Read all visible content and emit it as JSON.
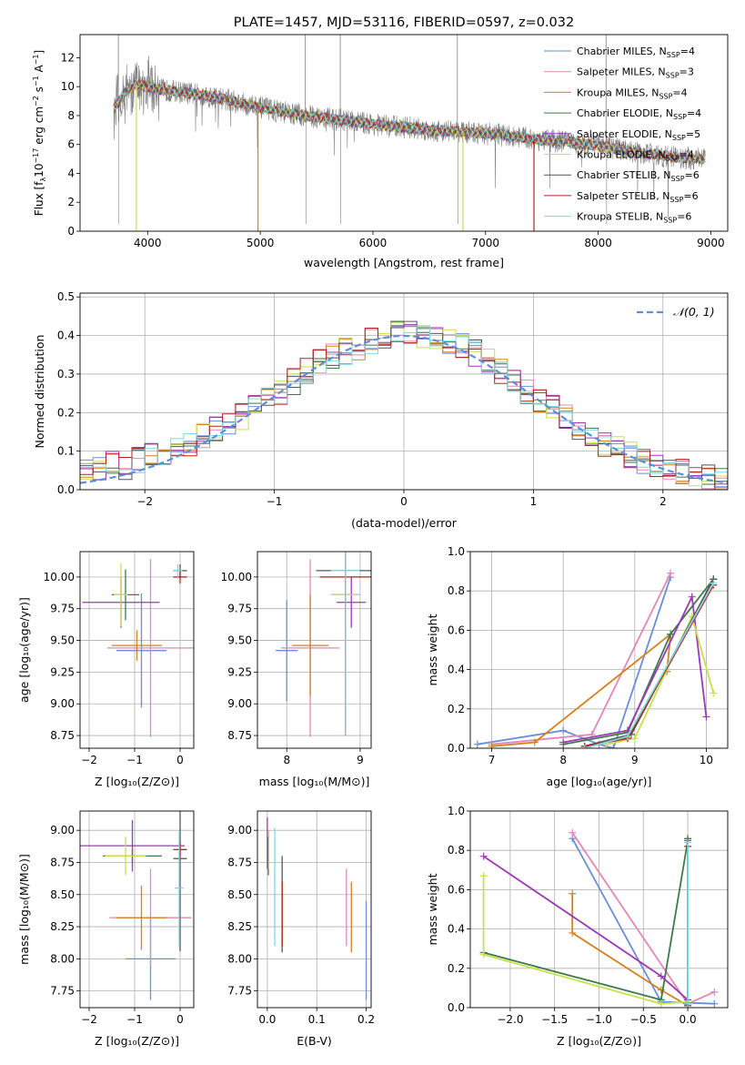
{
  "colors": {
    "chabrier_miles": "#6a8fd6",
    "salpeter_miles": "#e287b8",
    "kroupa_miles": "#d4821e",
    "chabrier_elodie": "#3d7a4a",
    "salpeter_elodie": "#9b39b6",
    "kroupa_elodie": "#c8e04a",
    "chabrier_stelib": "#555555",
    "salpeter_stelib": "#b22222",
    "kroupa_stelib": "#7fd8e0",
    "observed": "#7f7f7f",
    "normal_curve": "#5b8fd6"
  },
  "chart_data": [
    {
      "type": "line",
      "title": "PLATE=1457, MJD=53116, FIBERID=0597, z=0.032",
      "xlabel": "wavelength [Angstrom, rest frame]",
      "ylabel": "Flux [fλ10⁻¹⁷ erg cm⁻² s⁻¹ A⁻¹]",
      "xlim": [
        3400,
        9150
      ],
      "ylim": [
        0,
        13.6
      ],
      "xticks": [
        4000,
        5000,
        6000,
        7000,
        8000,
        9000
      ],
      "yticks": [
        0,
        2,
        4,
        6,
        8,
        10,
        12
      ],
      "legend_position": "top-right",
      "grid": false,
      "legend": [
        {
          "label": "Chabrier MILES, N",
          "sub": "SSP",
          "tail": "=4",
          "color_key": "chabrier_miles"
        },
        {
          "label": "Salpeter MILES, N",
          "sub": "SSP",
          "tail": "=3",
          "color_key": "salpeter_miles"
        },
        {
          "label": "Kroupa MILES, N",
          "sub": "SSP",
          "tail": "=4",
          "color_key": "kroupa_miles"
        },
        {
          "label": "Chabrier ELODIE, N",
          "sub": "SSP",
          "tail": "=4",
          "color_key": "chabrier_elodie"
        },
        {
          "label": "Salpeter ELODIE, N",
          "sub": "SSP",
          "tail": "=5",
          "color_key": "salpeter_elodie"
        },
        {
          "label": "Kroupa ELODIE, N",
          "sub": "SSP",
          "tail": "=4",
          "color_key": "kroupa_elodie"
        },
        {
          "label": "Chabrier STELIB, N",
          "sub": "SSP",
          "tail": "=6",
          "color_key": "chabrier_stelib"
        },
        {
          "label": "Salpeter STELIB, N",
          "sub": "SSP",
          "tail": "=6",
          "color_key": "salpeter_stelib"
        },
        {
          "label": "Kroupa STELIB, N",
          "sub": "SSP",
          "tail": "=6",
          "color_key": "kroupa_stelib"
        }
      ],
      "model_flux": [
        [
          3700,
          8.5
        ],
        [
          3800,
          9.6
        ],
        [
          3900,
          10.2
        ],
        [
          4000,
          10.0
        ],
        [
          4100,
          9.8
        ],
        [
          4300,
          9.6
        ],
        [
          4500,
          9.4
        ],
        [
          4700,
          9.1
        ],
        [
          4900,
          8.7
        ],
        [
          5100,
          8.4
        ],
        [
          5300,
          8.1
        ],
        [
          5500,
          7.9
        ],
        [
          5700,
          7.7
        ],
        [
          5900,
          7.5
        ],
        [
          6100,
          7.3
        ],
        [
          6300,
          7.2
        ],
        [
          6500,
          7.0
        ],
        [
          6700,
          6.9
        ],
        [
          6900,
          6.8
        ],
        [
          7100,
          6.7
        ],
        [
          7300,
          6.5
        ],
        [
          7500,
          6.3
        ],
        [
          7700,
          6.2
        ],
        [
          7900,
          6.0
        ],
        [
          8100,
          5.8
        ],
        [
          8300,
          5.5
        ],
        [
          8500,
          5.3
        ],
        [
          8700,
          5.1
        ],
        [
          8900,
          5.0
        ]
      ],
      "model_dropouts": [
        3900,
        4980,
        6800,
        7430
      ],
      "observed_spikes": [
        3740,
        5400,
        5710,
        6750,
        8070
      ]
    },
    {
      "type": "line",
      "xlabel": "(data-model)/error",
      "ylabel": "Normed distribution",
      "xlim": [
        -2.5,
        2.5
      ],
      "ylim": [
        0,
        0.51
      ],
      "xticks": [
        -2,
        -1,
        0,
        1,
        2
      ],
      "yticks": [
        0.0,
        0.1,
        0.2,
        0.3,
        0.4,
        0.5
      ],
      "grid": true,
      "legend_position": "top-right",
      "legend": [
        {
          "label": "𝒩(0, 1)",
          "color_key": "normal_curve",
          "dashed": true
        }
      ],
      "bin_width": 0.1,
      "bin_start": -2.5,
      "histogram_counts": [
        0.05,
        0.055,
        0.065,
        0.06,
        0.075,
        0.09,
        0.1,
        0.115,
        0.12,
        0.14,
        0.155,
        0.17,
        0.19,
        0.215,
        0.23,
        0.255,
        0.28,
        0.31,
        0.335,
        0.345,
        0.36,
        0.37,
        0.385,
        0.395,
        0.405,
        0.41,
        0.4,
        0.395,
        0.385,
        0.37,
        0.355,
        0.33,
        0.305,
        0.28,
        0.255,
        0.23,
        0.21,
        0.185,
        0.16,
        0.14,
        0.12,
        0.105,
        0.09,
        0.075,
        0.065,
        0.055,
        0.045,
        0.035,
        0.03,
        0.025
      ]
    },
    {
      "type": "scatter",
      "xlabel": "Z [log₁₀(Z/Z⊙)]",
      "ylabel": "age  [log₁₀(age/yr)]",
      "xlim": [
        -2.2,
        0.3
      ],
      "ylim": [
        8.65,
        10.2
      ],
      "xticks": [
        -2,
        -1,
        0
      ],
      "yticks": [
        8.75,
        9.0,
        9.25,
        9.5,
        9.75,
        10.0
      ],
      "grid": true,
      "crosses": [
        {
          "color_key": "chabrier_miles",
          "x": -0.85,
          "y": 9.42,
          "xerr": 0.55,
          "yerr": 0.45
        },
        {
          "color_key": "salpeter_miles",
          "x": -0.65,
          "y": 9.44,
          "xerr": 0.95,
          "yerr": 0.7
        },
        {
          "color_key": "kroupa_miles",
          "x": -0.95,
          "y": 9.46,
          "xerr": 0.55,
          "yerr": 0.12
        },
        {
          "color_key": "chabrier_elodie",
          "x": -1.2,
          "y": 9.86,
          "xerr": 0.3,
          "yerr": 0.2
        },
        {
          "color_key": "salpeter_elodie",
          "x": -1.3,
          "y": 9.8,
          "xerr": 0.85,
          "yerr": 0.2
        },
        {
          "color_key": "kroupa_elodie",
          "x": -1.3,
          "y": 9.86,
          "xerr": 0.15,
          "yerr": 0.25
        },
        {
          "color_key": "chabrier_stelib",
          "x": 0.0,
          "y": 10.05,
          "xerr": 0.15,
          "yerr": 0.05
        },
        {
          "color_key": "salpeter_stelib",
          "x": 0.0,
          "y": 10.0,
          "xerr": 0.15,
          "yerr": 0.05
        },
        {
          "color_key": "kroupa_stelib",
          "x": -0.05,
          "y": 10.05,
          "xerr": 0.1,
          "yerr": 0.05
        }
      ]
    },
    {
      "type": "scatter",
      "xlabel": "mass [log₁₀(M/M⊙)]",
      "xlim": [
        7.6,
        9.15
      ],
      "ylim": [
        8.65,
        10.2
      ],
      "xticks": [
        8,
        9
      ],
      "yticks": [
        8.75,
        9.0,
        9.25,
        9.5,
        9.75,
        10.0
      ],
      "grid": true,
      "crosses": [
        {
          "color_key": "chabrier_miles",
          "x": 8.0,
          "y": 9.42,
          "xerr": 0.15,
          "yerr": 0.4
        },
        {
          "color_key": "salpeter_miles",
          "x": 8.32,
          "y": 9.44,
          "xerr": 0.4,
          "yerr": 0.7
        },
        {
          "color_key": "kroupa_miles",
          "x": 8.32,
          "y": 9.46,
          "xerr": 0.25,
          "yerr": 0.4
        },
        {
          "color_key": "chabrier_elodie",
          "x": 8.8,
          "y": 9.86,
          "xerr": 0.2,
          "yerr": 0.2
        },
        {
          "color_key": "salpeter_elodie",
          "x": 8.88,
          "y": 9.8,
          "xerr": 0.2,
          "yerr": 0.2
        },
        {
          "color_key": "kroupa_elodie",
          "x": 8.8,
          "y": 9.86,
          "xerr": 0.2,
          "yerr": 0.2
        },
        {
          "color_key": "chabrier_stelib",
          "x": 8.8,
          "y": 10.05,
          "xerr": 0.4,
          "yerr": 1.3
        },
        {
          "color_key": "salpeter_stelib",
          "x": 8.8,
          "y": 10.0,
          "xerr": 0.35,
          "yerr": 1.25
        },
        {
          "color_key": "kroupa_stelib",
          "x": 8.8,
          "y": 10.05,
          "xerr": 0.2,
          "yerr": 1.3
        }
      ]
    },
    {
      "type": "line",
      "xlabel": "age  [log₁₀(age/yr)]",
      "ylabel": "mass weight",
      "xlim": [
        6.7,
        10.3
      ],
      "ylim": [
        0,
        1.0
      ],
      "xticks": [
        7,
        8,
        9,
        10
      ],
      "yticks": [
        0.0,
        0.2,
        0.4,
        0.6,
        0.8,
        1.0
      ],
      "grid": true,
      "series": [
        {
          "color_key": "chabrier_miles",
          "points": [
            [
              6.8,
              0.02
            ],
            [
              8.0,
              0.09
            ],
            [
              8.5,
              0.02
            ],
            [
              8.7,
              0.0
            ],
            [
              9.5,
              0.87
            ]
          ]
        },
        {
          "color_key": "salpeter_miles",
          "points": [
            [
              7.0,
              0.02
            ],
            [
              8.4,
              0.07
            ],
            [
              9.5,
              0.89
            ]
          ]
        },
        {
          "color_key": "kroupa_miles",
          "points": [
            [
              7.0,
              0.01
            ],
            [
              7.6,
              0.03
            ],
            [
              9.5,
              0.58
            ],
            [
              9.45,
              0.39
            ]
          ]
        },
        {
          "color_key": "chabrier_elodie",
          "points": [
            [
              8.0,
              0.02
            ],
            [
              8.9,
              0.08
            ],
            [
              9.5,
              0.58
            ],
            [
              10.1,
              0.86
            ]
          ]
        },
        {
          "color_key": "salpeter_elodie",
          "points": [
            [
              8.0,
              0.03
            ],
            [
              8.9,
              0.09
            ],
            [
              9.8,
              0.77
            ],
            [
              10.0,
              0.16
            ]
          ]
        },
        {
          "color_key": "kroupa_elodie",
          "points": [
            [
              8.6,
              0.02
            ],
            [
              9.0,
              0.05
            ],
            [
              9.8,
              0.67
            ],
            [
              10.1,
              0.28
            ]
          ]
        },
        {
          "color_key": "chabrier_stelib",
          "points": [
            [
              8.3,
              0.01
            ],
            [
              8.95,
              0.07
            ],
            [
              10.1,
              0.86
            ]
          ]
        },
        {
          "color_key": "salpeter_stelib",
          "points": [
            [
              8.3,
              0.01
            ],
            [
              8.9,
              0.05
            ],
            [
              10.1,
              0.83
            ]
          ]
        },
        {
          "color_key": "kroupa_stelib",
          "points": [
            [
              8.3,
              0.0
            ],
            [
              8.9,
              0.06
            ],
            [
              10.1,
              0.84
            ]
          ]
        }
      ]
    },
    {
      "type": "scatter",
      "xlabel": "Z [log₁₀(Z/Z⊙)]",
      "ylabel": "mass [log₁₀(M/M⊙)]",
      "xlim": [
        -2.2,
        0.3
      ],
      "ylim": [
        7.62,
        9.15
      ],
      "xticks": [
        -2,
        -1,
        0
      ],
      "yticks": [
        7.75,
        8.0,
        8.25,
        8.5,
        8.75,
        9.0
      ],
      "grid": true,
      "crosses": [
        {
          "color_key": "chabrier_miles",
          "x": -0.65,
          "y": 8.0,
          "xerr": 0.55,
          "yerr": 0.32
        },
        {
          "color_key": "salpeter_miles",
          "x": -0.65,
          "y": 8.32,
          "xerr": 0.9,
          "yerr": 0.38
        },
        {
          "color_key": "kroupa_miles",
          "x": -0.85,
          "y": 8.32,
          "xerr": 0.55,
          "yerr": 0.25
        },
        {
          "color_key": "chabrier_elodie",
          "x": -1.05,
          "y": 8.8,
          "xerr": 0.65,
          "yerr": 0.05
        },
        {
          "color_key": "salpeter_elodie",
          "x": -1.05,
          "y": 8.88,
          "xerr": 1.15,
          "yerr": 0.2
        },
        {
          "color_key": "kroupa_elodie",
          "x": -1.2,
          "y": 8.8,
          "xerr": 0.45,
          "yerr": 0.15
        },
        {
          "color_key": "chabrier_stelib",
          "x": 0.0,
          "y": 8.78,
          "xerr": 0.15,
          "yerr": 0.72
        },
        {
          "color_key": "salpeter_stelib",
          "x": 0.0,
          "y": 8.85,
          "xerr": 0.15,
          "yerr": 0.05
        },
        {
          "color_key": "kroupa_stelib",
          "x": -0.02,
          "y": 8.55,
          "xerr": 0.1,
          "yerr": 0.45
        }
      ]
    },
    {
      "type": "scatter",
      "xlabel": "E(B-V)",
      "xlim": [
        -0.02,
        0.21
      ],
      "ylim": [
        7.62,
        9.15
      ],
      "xticks": [
        0.0,
        0.1,
        0.2
      ],
      "yticks": [
        7.75,
        8.0,
        8.25,
        8.5,
        8.75,
        9.0
      ],
      "grid": true,
      "bars": [
        {
          "color_key": "chabrier_miles",
          "x": 0.2,
          "y1": 7.68,
          "y2": 8.45
        },
        {
          "color_key": "salpeter_miles",
          "x": 0.16,
          "y1": 8.1,
          "y2": 8.7
        },
        {
          "color_key": "kroupa_miles",
          "x": 0.17,
          "y1": 8.05,
          "y2": 8.6
        },
        {
          "color_key": "chabrier_elodie",
          "x": 0.002,
          "y1": 8.65,
          "y2": 8.95
        },
        {
          "color_key": "salpeter_elodie",
          "x": 0.0,
          "y1": 8.7,
          "y2": 9.1
        },
        {
          "color_key": "kroupa_elodie",
          "x": 0.003,
          "y1": 8.7,
          "y2": 9.0
        },
        {
          "color_key": "chabrier_stelib",
          "x": 0.03,
          "y1": 8.05,
          "y2": 8.8
        },
        {
          "color_key": "salpeter_stelib",
          "x": 0.03,
          "y1": 8.1,
          "y2": 8.6
        },
        {
          "color_key": "kroupa_stelib",
          "x": 0.015,
          "y1": 8.1,
          "y2": 9.02
        }
      ]
    },
    {
      "type": "line",
      "xlabel": "Z [log₁₀(Z/Z⊙)]",
      "ylabel": "mass weight",
      "xlim": [
        -2.45,
        0.45
      ],
      "ylim": [
        0,
        1.0
      ],
      "xticks": [
        -2.0,
        -1.5,
        -1.0,
        -0.5,
        0.0
      ],
      "yticks": [
        0.0,
        0.2,
        0.4,
        0.6,
        0.8,
        1.0
      ],
      "grid": true,
      "series": [
        {
          "color_key": "chabrier_miles",
          "points": [
            [
              -1.3,
              0.86
            ],
            [
              -0.3,
              0.03
            ],
            [
              0.3,
              0.02
            ]
          ]
        },
        {
          "color_key": "salpeter_miles",
          "points": [
            [
              -1.3,
              0.89
            ],
            [
              0.0,
              0.02
            ],
            [
              0.3,
              0.08
            ]
          ]
        },
        {
          "color_key": "kroupa_miles",
          "points": [
            [
              -1.3,
              0.58
            ],
            [
              -1.3,
              0.38
            ],
            [
              -0.3,
              0.09
            ],
            [
              0.0,
              0.01
            ]
          ]
        },
        {
          "color_key": "chabrier_elodie",
          "points": [
            [
              -2.3,
              0.28
            ],
            [
              -0.3,
              0.04
            ],
            [
              0.0,
              0.85
            ]
          ]
        },
        {
          "color_key": "salpeter_elodie",
          "points": [
            [
              -2.3,
              0.77
            ],
            [
              -0.3,
              0.16
            ],
            [
              0.0,
              0.04
            ]
          ]
        },
        {
          "color_key": "kroupa_elodie",
          "points": [
            [
              -2.3,
              0.67
            ],
            [
              -2.3,
              0.27
            ],
            [
              -0.3,
              0.02
            ],
            [
              0.0,
              0.03
            ]
          ]
        },
        {
          "color_key": "chabrier_stelib",
          "points": [
            [
              0.0,
              0.86
            ],
            [
              0.0,
              0.01
            ]
          ]
        },
        {
          "color_key": "salpeter_stelib",
          "points": [
            [
              0.0,
              0.82
            ],
            [
              0.0,
              0.02
            ]
          ]
        },
        {
          "color_key": "kroupa_stelib",
          "points": [
            [
              0.0,
              0.84
            ],
            [
              0.0,
              0.02
            ]
          ]
        }
      ]
    }
  ]
}
